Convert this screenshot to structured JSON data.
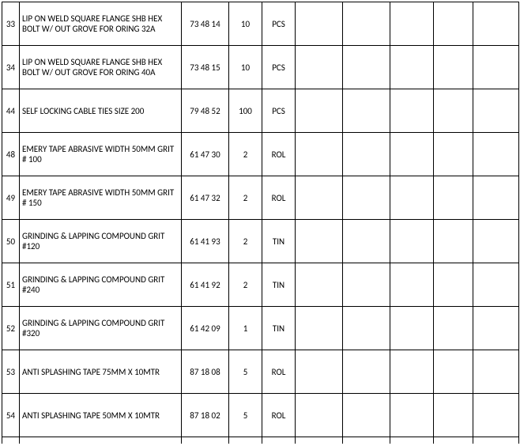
{
  "table": {
    "rows": [
      {
        "no": "33",
        "desc": "LIP ON WELD SQUARE FLANGE SHB HEX BOLT W/ OUT GROVE FOR ORING 32A",
        "code": "73 48 14",
        "qty": "10",
        "unit": "PCS"
      },
      {
        "no": "34",
        "desc": "LIP ON WELD SQUARE FLANGE SHB HEX BOLT W/ OUT GROVE FOR ORING 40A",
        "code": "73 48 15",
        "qty": "10",
        "unit": "PCS"
      },
      {
        "no": "44",
        "desc": "SELF LOCKING CABLE TIES SIZE 200",
        "code": "79 48 52",
        "qty": "100",
        "unit": "PCS"
      },
      {
        "no": "48",
        "desc": "EMERY TAPE ABRASIVE WIDTH 50MM GRIT # 100",
        "code": "61 47 30",
        "qty": "2",
        "unit": "ROL"
      },
      {
        "no": "49",
        "desc": "EMERY TAPE ABRASIVE WIDTH 50MM GRIT # 150",
        "code": "61 47 32",
        "qty": "2",
        "unit": "ROL"
      },
      {
        "no": "50",
        "desc": "GRINDING & LAPPING COMPOUND GRIT #120",
        "code": "61 41 93",
        "qty": "2",
        "unit": "TIN"
      },
      {
        "no": "51",
        "desc": "GRINDING & LAPPING COMPOUND GRIT #240",
        "code": "61 41 92",
        "qty": "2",
        "unit": "TIN"
      },
      {
        "no": "52",
        "desc": "GRINDING & LAPPING COMPOUND GRIT #320",
        "code": "61 42 09",
        "qty": "1",
        "unit": "TIN"
      },
      {
        "no": "53",
        "desc": "ANTI SPLASHING TAPE  75MM X 10MTR",
        "code": "87 18 08",
        "qty": "5",
        "unit": "ROL"
      },
      {
        "no": "54",
        "desc": "ANTI SPLASHING TAPE  50MM X 10MTR",
        "code": "87 18 02",
        "qty": "5",
        "unit": "ROL"
      }
    ]
  }
}
